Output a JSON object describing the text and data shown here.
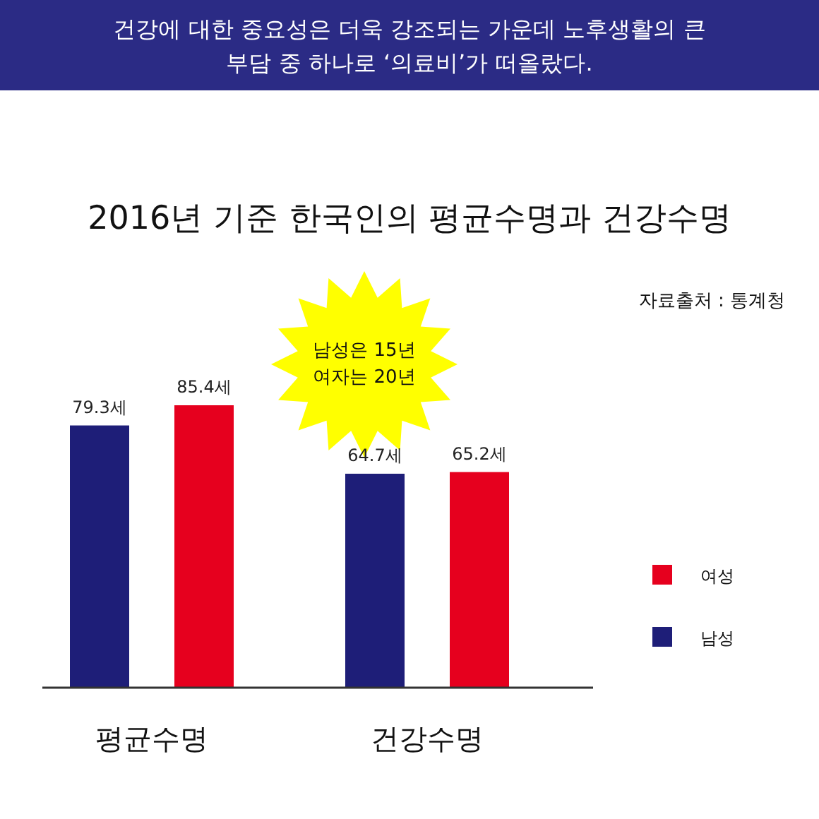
{
  "chart_data": {
    "type": "bar",
    "title": "건강에 대한 중요성은 더욱 강조되는 가운데 노후생활의 큰 부담 중 하나로 ‘의료비’가 떠올랐다.",
    "subtitle": "2016년 기준 한국인의 평균수명과 건강수명",
    "annotations": [
      "자료출처 : 통계청",
      "남성은 15년",
      "여자는 20년"
    ],
    "categories": [
      "평균수명",
      "건강수명"
    ],
    "legend": "right",
    "series": [
      {
        "name": "남성",
        "color": "#1e1e78",
        "values": [
          79.3,
          64.7
        ],
        "value_labels": [
          "79.3세",
          "64.7세"
        ]
      },
      {
        "name": "여성",
        "color": "#e6001e",
        "values": [
          85.4,
          65.2
        ],
        "value_labels": [
          "85.4세",
          "65.2세"
        ]
      }
    ]
  }
}
